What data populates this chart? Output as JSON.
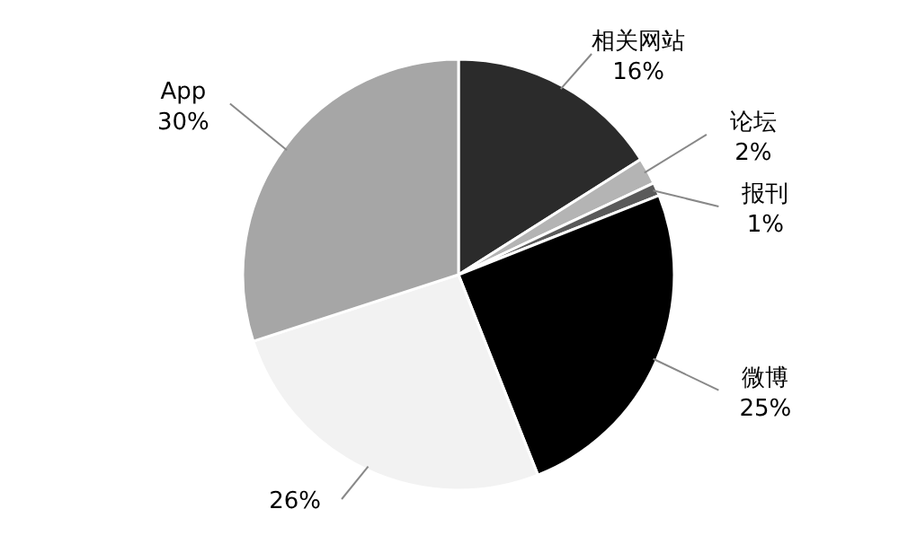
{
  "chart_data": {
    "type": "pie",
    "categories": [
      "相关网站",
      "论坛",
      "报刊",
      "微博",
      null,
      "App"
    ],
    "values": [
      16,
      2,
      1,
      25,
      26,
      30
    ],
    "value_labels": [
      "16%",
      "2%",
      "1%",
      "25%",
      "26%",
      "30%"
    ],
    "colors": [
      "#2b2b2b",
      "#b4b4b4",
      "#5a5a5a",
      "#000000",
      "#f2f2f2",
      "#a6a6a6"
    ]
  }
}
